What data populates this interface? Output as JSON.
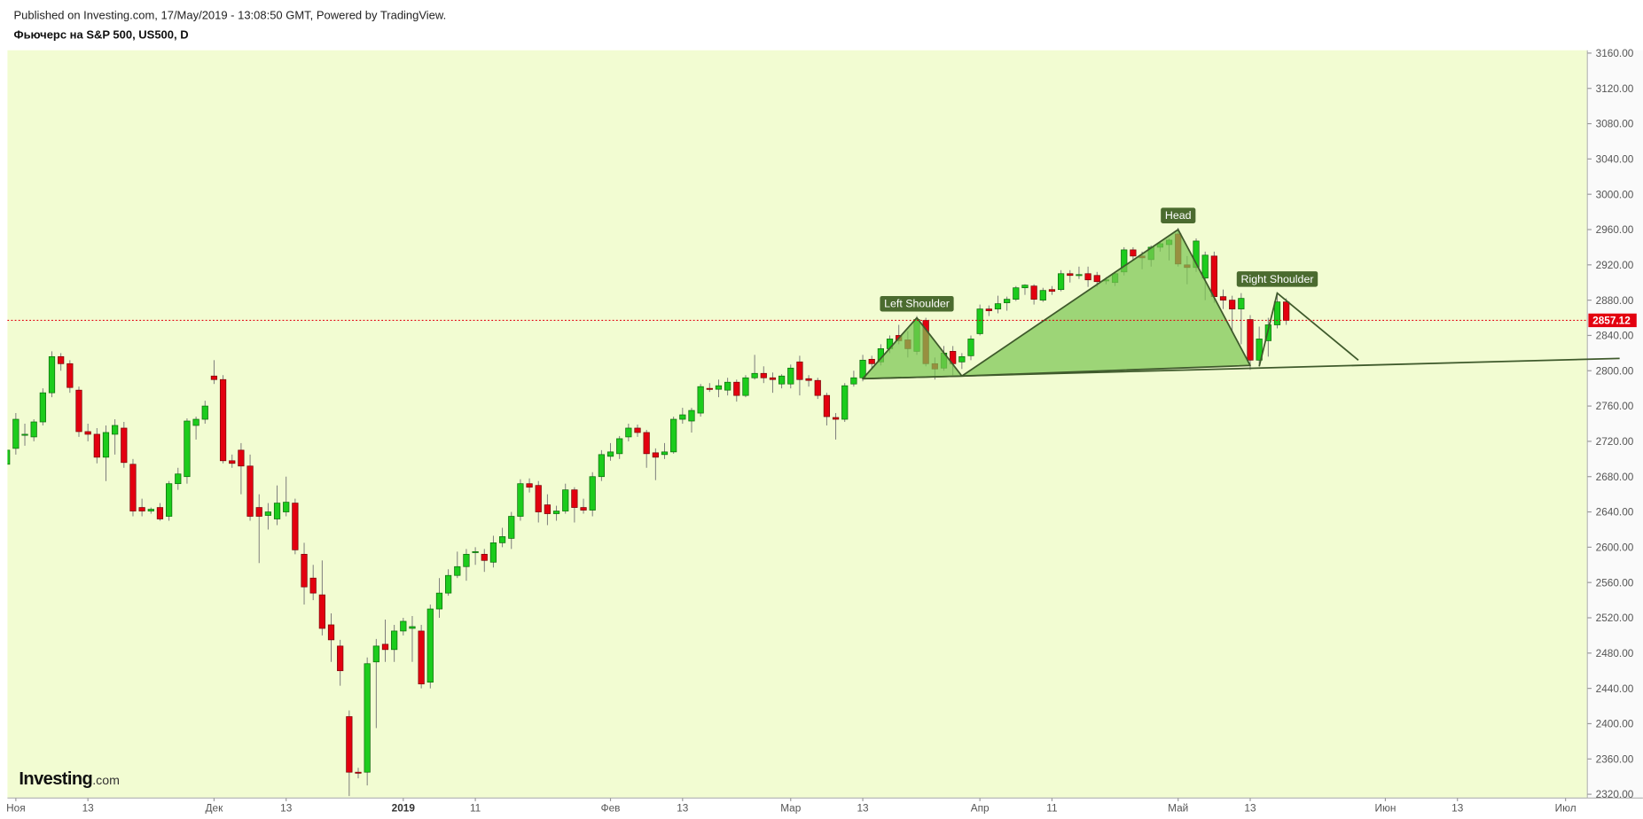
{
  "chart_data": {
    "type": "candlestick",
    "source_note": "Published on Investing.com, 17/May/2019 - 13:08:50 GMT, Powered by TradingView.",
    "title": "Фьючерс на S&P 500, US500, D",
    "logo": "Investing",
    "logo_suffix": ".com",
    "up_color": "#1ccc1c",
    "down_color": "#e3000f",
    "last_price_color": "#e3000f",
    "grid": false,
    "categories": [
      null,
      "Ноя",
      null,
      null,
      null,
      null,
      null,
      null,
      null,
      "13",
      null,
      null,
      null,
      null,
      null,
      null,
      null,
      null,
      null,
      null,
      null,
      null,
      null,
      "Дек",
      null,
      null,
      null,
      null,
      null,
      null,
      null,
      "13",
      null,
      null,
      null,
      null,
      null,
      null,
      null,
      null,
      null,
      null,
      null,
      null,
      "2019",
      null,
      null,
      null,
      null,
      null,
      null,
      null,
      "11",
      null,
      null,
      null,
      null,
      null,
      null,
      null,
      null,
      null,
      null,
      null,
      null,
      null,
      null,
      "Фев",
      null,
      null,
      null,
      null,
      null,
      null,
      null,
      "13",
      null,
      null,
      null,
      null,
      null,
      null,
      null,
      null,
      null,
      null,
      null,
      "Мар",
      null,
      null,
      null,
      null,
      null,
      null,
      null,
      "13",
      null,
      null,
      null,
      null,
      null,
      null,
      null,
      null,
      null,
      null,
      null,
      null,
      "Апр",
      null,
      null,
      null,
      null,
      null,
      null,
      null,
      "11",
      null,
      null,
      null,
      null,
      null,
      null,
      null,
      null,
      null,
      null,
      null,
      null,
      null,
      "Май",
      null,
      null,
      null,
      null,
      null,
      null,
      null,
      "13",
      null,
      null,
      null,
      null,
      null,
      null,
      null,
      null,
      null,
      null,
      null,
      null,
      null,
      null,
      "Июн",
      null,
      null,
      null,
      null,
      null,
      null,
      null,
      "13",
      null,
      null,
      null,
      null,
      null,
      null,
      null,
      null,
      null,
      null,
      null,
      "Июл",
      null,
      null
    ],
    "open": [
      2694,
      2712,
      2727,
      2725,
      2742,
      2775,
      2816,
      2808,
      2778,
      2731,
      2728,
      2702,
      2728,
      2735,
      2694,
      2645,
      2641,
      2645,
      2635,
      2672,
      2680,
      2738,
      2745,
      2794,
      2790,
      2698,
      2710,
      2692,
      2645,
      2636,
      2632,
      2640,
      2650,
      2592,
      2565,
      2546,
      2512,
      2488,
      2408,
      2345,
      2345,
      2470,
      2490,
      2484,
      2505,
      2508,
      2505,
      2447,
      2530,
      2548,
      2568,
      2578,
      2594,
      2592,
      2583,
      2605,
      2610,
      2635,
      2672,
      2670,
      2648,
      2638,
      2641,
      2665,
      2645,
      2642,
      2680,
      2703,
      2706,
      2725,
      2735,
      2730,
      2707,
      2705,
      2708,
      2745,
      2743,
      2752,
      2780,
      2779,
      2778,
      2787,
      2772,
      2792,
      2797,
      2792,
      2785,
      2785,
      2810,
      2791,
      2789,
      2772,
      2747,
      2745,
      2785,
      2792,
      2813,
      2810,
      2825,
      2840,
      2835,
      2822,
      2857,
      2808,
      2803,
      2822,
      2810,
      2817,
      2842,
      2870,
      2870,
      2877,
      2881,
      2894,
      2896,
      2880,
      2892,
      2892,
      2910,
      2908,
      2910,
      2908,
      2902,
      2900,
      2912,
      2937,
      2930,
      2926,
      2940,
      2943,
      2955,
      2920,
      2917,
      2905,
      2930,
      2884,
      2880,
      2870,
      2858,
      2812,
      2834,
      2852,
      2878,
      null,
      null,
      null,
      null,
      null,
      null,
      null,
      null,
      null,
      null,
      null,
      null,
      null,
      null,
      null,
      null,
      null,
      null,
      null,
      null,
      null,
      null,
      null,
      null,
      null,
      null,
      null,
      null,
      null,
      null,
      null,
      null,
      null
    ],
    "high": [
      2712,
      2752,
      2740,
      2745,
      2780,
      2822,
      2820,
      2812,
      2782,
      2740,
      2735,
      2738,
      2745,
      2742,
      2700,
      2655,
      2645,
      2650,
      2675,
      2690,
      2746,
      2748,
      2766,
      2812,
      2795,
      2705,
      2718,
      2705,
      2660,
      2650,
      2670,
      2680,
      2655,
      2605,
      2580,
      2585,
      2525,
      2495,
      2415,
      2350,
      2475,
      2496,
      2518,
      2512,
      2520,
      2522,
      2512,
      2535,
      2565,
      2575,
      2595,
      2598,
      2600,
      2598,
      2613,
      2622,
      2640,
      2677,
      2678,
      2675,
      2660,
      2647,
      2672,
      2668,
      2655,
      2685,
      2710,
      2718,
      2726,
      2740,
      2739,
      2733,
      2712,
      2718,
      2748,
      2758,
      2758,
      2785,
      2786,
      2790,
      2792,
      2790,
      2795,
      2818,
      2805,
      2798,
      2796,
      2807,
      2817,
      2795,
      2792,
      2775,
      2752,
      2786,
      2800,
      2818,
      2817,
      2830,
      2840,
      2852,
      2845,
      2862,
      2860,
      2815,
      2828,
      2828,
      2820,
      2840,
      2875,
      2874,
      2885,
      2884,
      2896,
      2898,
      2898,
      2894,
      2896,
      2914,
      2914,
      2918,
      2918,
      2912,
      2906,
      2912,
      2940,
      2940,
      2935,
      2942,
      2947,
      2950,
      2962,
      2930,
      2950,
      2935,
      2935,
      2892,
      2885,
      2888,
      2863,
      2850,
      2860,
      2887,
      2882,
      null,
      null,
      null,
      null,
      null,
      null,
      null,
      null,
      null,
      null,
      null,
      null,
      null,
      null,
      null,
      null,
      null,
      null,
      null,
      null,
      null,
      null,
      null,
      null,
      null,
      null,
      null,
      null,
      null,
      null,
      null,
      null,
      null
    ],
    "low": [
      2680,
      2705,
      2715,
      2720,
      2738,
      2770,
      2800,
      2775,
      2725,
      2720,
      2695,
      2675,
      2705,
      2690,
      2635,
      2635,
      2638,
      2630,
      2630,
      2665,
      2672,
      2722,
      2740,
      2785,
      2695,
      2690,
      2660,
      2630,
      2582,
      2620,
      2625,
      2635,
      2592,
      2535,
      2540,
      2500,
      2470,
      2443,
      2318,
      2338,
      2330,
      2395,
      2470,
      2470,
      2500,
      2470,
      2440,
      2440,
      2520,
      2545,
      2565,
      2562,
      2580,
      2572,
      2577,
      2600,
      2598,
      2630,
      2662,
      2628,
      2625,
      2630,
      2638,
      2628,
      2638,
      2635,
      2675,
      2698,
      2700,
      2720,
      2725,
      2690,
      2676,
      2700,
      2706,
      2740,
      2730,
      2748,
      2776,
      2770,
      2772,
      2765,
      2770,
      2790,
      2786,
      2775,
      2780,
      2780,
      2772,
      2782,
      2768,
      2738,
      2722,
      2742,
      2782,
      2788,
      2803,
      2806,
      2820,
      2830,
      2815,
      2818,
      2805,
      2790,
      2800,
      2795,
      2802,
      2812,
      2840,
      2862,
      2865,
      2868,
      2879,
      2886,
      2875,
      2878,
      2886,
      2890,
      2900,
      2904,
      2895,
      2895,
      2898,
      2896,
      2908,
      2925,
      2915,
      2918,
      2935,
      2925,
      2918,
      2898,
      2912,
      2880,
      2877,
      2870,
      2845,
      2830,
      2801,
      2805,
      2816,
      2848,
      2852,
      null,
      null,
      null,
      null,
      null,
      null,
      null,
      null,
      null,
      null,
      null,
      null,
      null,
      null,
      null,
      null,
      null,
      null,
      null,
      null,
      null,
      null,
      null,
      null,
      null,
      null,
      null,
      null,
      null,
      null,
      null,
      null,
      null
    ],
    "close": [
      2710,
      2745,
      2728,
      2742,
      2775,
      2816,
      2808,
      2781,
      2731,
      2728,
      2702,
      2730,
      2738,
      2696,
      2641,
      2641,
      2643,
      2632,
      2672,
      2683,
      2743,
      2745,
      2760,
      2790,
      2698,
      2695,
      2692,
      2635,
      2635,
      2640,
      2650,
      2651,
      2597,
      2555,
      2548,
      2508,
      2495,
      2460,
      2345,
      2344,
      2468,
      2488,
      2484,
      2505,
      2516,
      2510,
      2445,
      2530,
      2548,
      2568,
      2578,
      2592,
      2595,
      2585,
      2605,
      2612,
      2635,
      2672,
      2668,
      2640,
      2638,
      2641,
      2665,
      2645,
      2642,
      2680,
      2705,
      2708,
      2723,
      2735,
      2730,
      2706,
      2702,
      2708,
      2745,
      2750,
      2755,
      2782,
      2779,
      2783,
      2787,
      2772,
      2792,
      2797,
      2792,
      2790,
      2794,
      2803,
      2790,
      2789,
      2772,
      2748,
      2745,
      2783,
      2792,
      2812,
      2808,
      2825,
      2836,
      2834,
      2825,
      2858,
      2808,
      2802,
      2820,
      2808,
      2816,
      2836,
      2870,
      2868,
      2876,
      2881,
      2894,
      2897,
      2881,
      2891,
      2890,
      2910,
      2908,
      2909,
      2903,
      2901,
      2903,
      2910,
      2937,
      2930,
      2928,
      2940,
      2944,
      2948,
      2921,
      2917,
      2947,
      2931,
      2884,
      2880,
      2870,
      2882,
      2812,
      2836,
      2852,
      2878,
      2857.12,
      null,
      null,
      null,
      null,
      null,
      null,
      null,
      null,
      null,
      null,
      null,
      null,
      null,
      null,
      null,
      null,
      null,
      null,
      null,
      null,
      null,
      null,
      null,
      null,
      null,
      null,
      null,
      null,
      null,
      null,
      null,
      null,
      null
    ],
    "ylim": [
      2315.7,
      3163.2
    ],
    "yticks": [
      {
        "value": 2320,
        "label": "2320.00"
      },
      {
        "value": 2360,
        "label": "2360.00"
      },
      {
        "value": 2400,
        "label": "2400.00"
      },
      {
        "value": 2440,
        "label": "2440.00"
      },
      {
        "value": 2480,
        "label": "2480.00"
      },
      {
        "value": 2520,
        "label": "2520.00"
      },
      {
        "value": 2560,
        "label": "2560.00"
      },
      {
        "value": 2600,
        "label": "2600.00"
      },
      {
        "value": 2640,
        "label": "2640.00"
      },
      {
        "value": 2680,
        "label": "2680.00"
      },
      {
        "value": 2720,
        "label": "2720.00"
      },
      {
        "value": 2760,
        "label": "2760.00"
      },
      {
        "value": 2800,
        "label": "2800.00"
      },
      {
        "value": 2840,
        "label": "2840.00"
      },
      {
        "value": 2880,
        "label": "2880.00"
      },
      {
        "value": 2920,
        "label": "2920.00"
      },
      {
        "value": 2960,
        "label": "2960.00"
      },
      {
        "value": 3000,
        "label": "3000.00"
      },
      {
        "value": 3040,
        "label": "3040.00"
      },
      {
        "value": 3080,
        "label": "3080.00"
      },
      {
        "value": 3120,
        "label": "3120.00"
      },
      {
        "value": 3160,
        "label": "3160.00"
      }
    ],
    "neckline": {
      "x": [
        95,
        179
      ],
      "y": [
        2791,
        2814
      ]
    },
    "shapes": [
      {
        "label": "Left Shoulder",
        "x": [
          95,
          101,
          106
        ],
        "y": [
          2791,
          2860,
          2794
        ],
        "fill": true
      },
      {
        "label": "Head",
        "x": [
          106,
          130,
          138
        ],
        "y": [
          2794,
          2960,
          2806
        ],
        "fill": true
      },
      {
        "label": "Right Shoulder",
        "x": [
          139,
          141,
          150
        ],
        "y": [
          2805,
          2888,
          2812
        ],
        "fill": false
      }
    ]
  }
}
